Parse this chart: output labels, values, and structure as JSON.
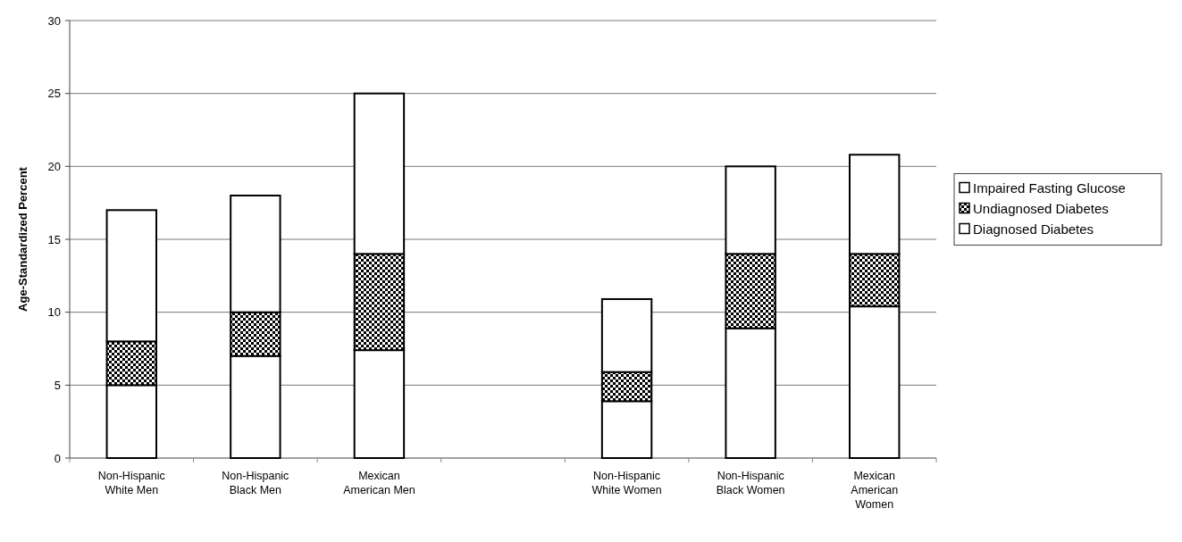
{
  "chart_data": {
    "type": "bar",
    "stacked": true,
    "ylabel": "Age-Standardized Percent",
    "categories": [
      "Non-Hispanic White Men",
      "Non-Hispanic Black Men",
      "Mexican American Men",
      null,
      "Non-Hispanic White Women",
      "Non-Hispanic Black Women",
      "Mexican American Women"
    ],
    "series": [
      {
        "name": "Diagnosed Diabetes",
        "color": "#ffffff",
        "values": [
          5,
          7,
          7.4,
          null,
          3.9,
          8.9,
          10.4
        ]
      },
      {
        "name": "Undiagnosed Diabetes",
        "color": "#000000",
        "values": [
          3,
          3,
          6.6,
          null,
          2,
          5.1,
          3.6
        ]
      },
      {
        "name": "Impaired Fasting Glucose",
        "color": "#ffffff",
        "values": [
          9,
          8,
          11,
          null,
          5,
          6,
          6.8
        ]
      }
    ],
    "ylim": [
      0,
      30
    ],
    "yticks": [
      0,
      5,
      10,
      15,
      20,
      25,
      30
    ],
    "grid": "y",
    "legend": "right"
  }
}
